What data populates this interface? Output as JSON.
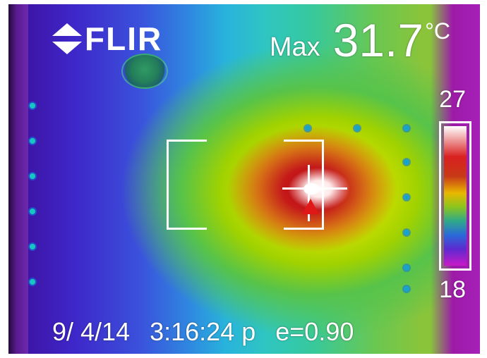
{
  "brand": {
    "logo_text": "FLIR"
  },
  "readout": {
    "label": "Max",
    "value": "31.7",
    "unit": "°C"
  },
  "scale": {
    "max": "27",
    "min": "18"
  },
  "footer": {
    "date": "9/ 4/14",
    "time": "3:16:24 p",
    "emissivity": "e=0.90"
  },
  "colors": {
    "hot": "#e01818",
    "text": "#ffffff"
  },
  "icons": {
    "logo": "flir-logo-mark-icon",
    "crosshair": "crosshair-icon",
    "hotspot": "hotspot-triangle-icon"
  }
}
